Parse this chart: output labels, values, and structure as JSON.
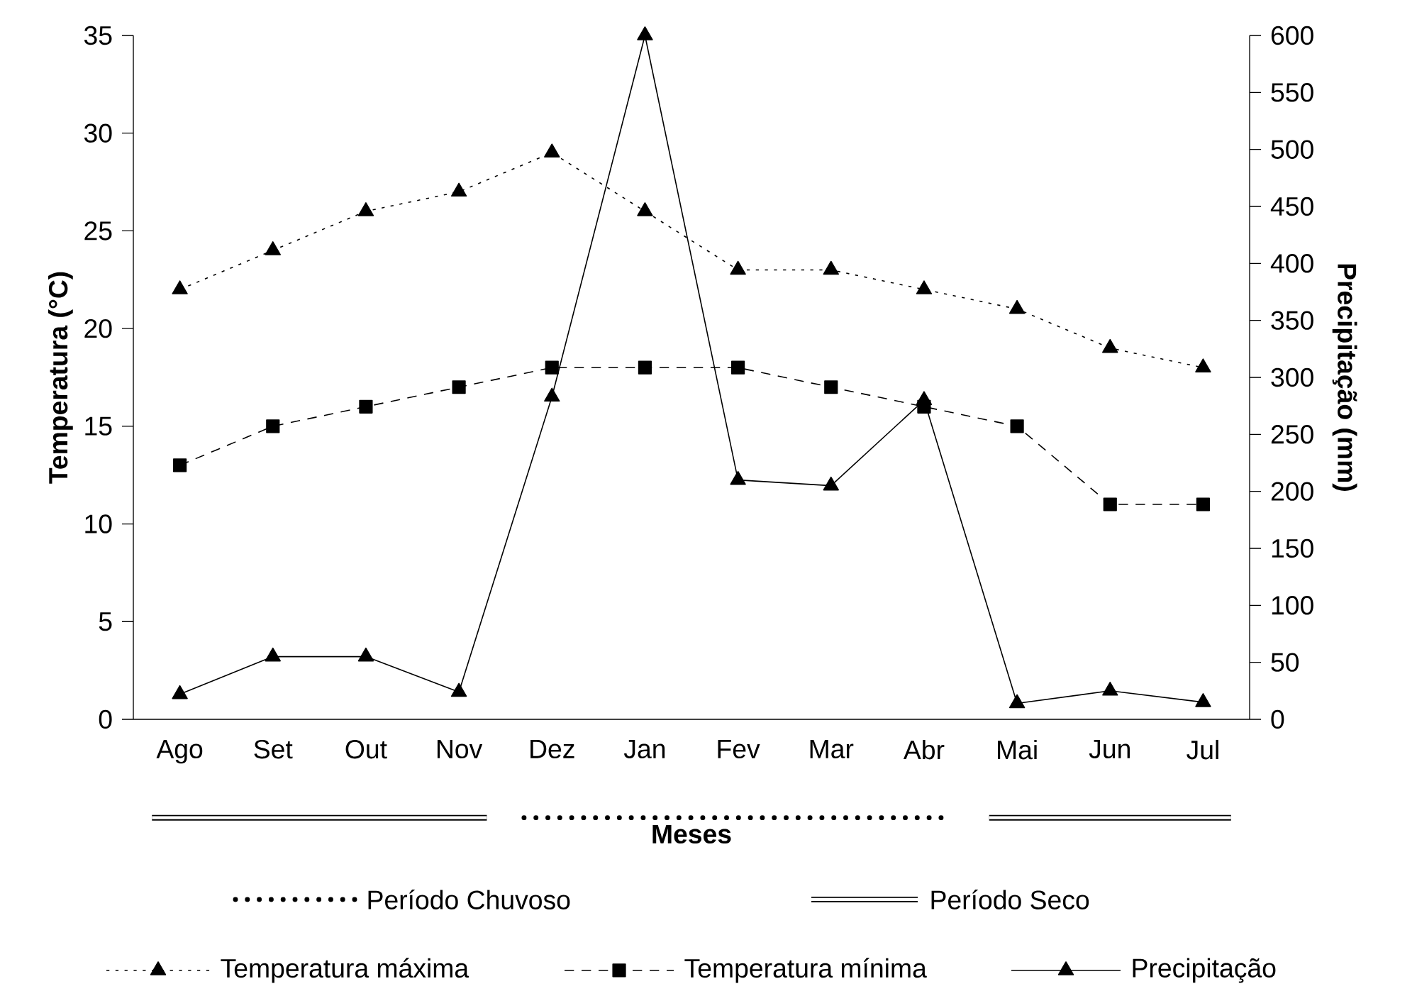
{
  "chart_data": {
    "type": "line",
    "xlabel": "Meses",
    "ylabel": "Temperatura (°C)",
    "y2label": "Precipitação (mm)",
    "categories": [
      "Ago",
      "Set",
      "Out",
      "Nov",
      "Dez",
      "Jan",
      "Fev",
      "Mar",
      "Abr",
      "Mai",
      "Jun",
      "Jul"
    ],
    "ylim": [
      0,
      35
    ],
    "yticks": [
      0,
      5,
      10,
      15,
      20,
      25,
      30,
      35
    ],
    "y2lim": [
      0,
      600
    ],
    "y2ticks": [
      0,
      50,
      100,
      150,
      200,
      250,
      300,
      350,
      400,
      450,
      500,
      550,
      600
    ],
    "legend": "bottom",
    "grid": false,
    "series": [
      {
        "name": "Temperatura máxima",
        "color": "#000000",
        "marker": "triangle",
        "line_style": "dotted",
        "values": [
          22,
          24,
          26,
          27,
          29,
          26,
          23,
          23,
          22,
          21,
          19,
          18
        ]
      },
      {
        "name": "Temperatura mínima",
        "color": "#000000",
        "marker": "square",
        "line_style": "dashed",
        "values": [
          13,
          15,
          16,
          17,
          18,
          18,
          18,
          17,
          16,
          15,
          11,
          11
        ]
      },
      {
        "name": "Precipitação",
        "color": "#000000",
        "marker": "triangle",
        "line_style": "solid",
        "axis": "y2",
        "values": [
          22,
          55,
          55,
          24,
          283,
          600,
          210,
          205,
          280,
          14,
          25,
          15
        ]
      }
    ],
    "annotations": [
      "Período Chuvoso",
      "Período Seco"
    ]
  }
}
